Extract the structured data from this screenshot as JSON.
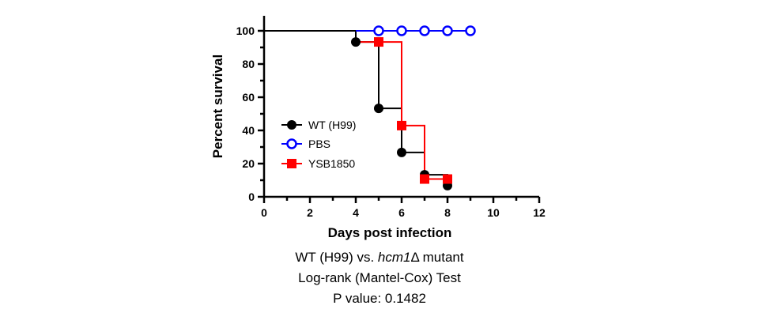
{
  "chart_data": {
    "type": "line",
    "subtype": "kaplan-meier-step",
    "xlabel": "Days post infection",
    "ylabel": "Percent survival",
    "xlim": [
      0,
      12
    ],
    "ylim": [
      0,
      100
    ],
    "x_ticks": [
      0,
      2,
      4,
      6,
      8,
      10,
      12
    ],
    "y_ticks": [
      0,
      20,
      40,
      60,
      80,
      100
    ],
    "legend_position": "left",
    "grid": false,
    "series": [
      {
        "name": "WT (H99)",
        "color": "#000000",
        "marker": "filled-circle",
        "step_x": [
          0,
          4,
          5,
          6,
          7,
          8
        ],
        "step_y": [
          100,
          93.3,
          53.3,
          26.7,
          13.3,
          6.7
        ],
        "points": [
          [
            4,
            93.3
          ],
          [
            5,
            53.3
          ],
          [
            6,
            26.7
          ],
          [
            7,
            13.3
          ],
          [
            8,
            6.7
          ]
        ]
      },
      {
        "name": "PBS",
        "color": "#0000ff",
        "marker": "open-circle",
        "step_x": [
          4,
          9
        ],
        "step_y": [
          100,
          100
        ],
        "points": [
          [
            5,
            100
          ],
          [
            6,
            100
          ],
          [
            7,
            100
          ],
          [
            8,
            100
          ],
          [
            9,
            100
          ]
        ]
      },
      {
        "name": "YSB1850",
        "color": "#ff0000",
        "marker": "filled-square",
        "step_x": [
          4,
          5,
          6,
          7,
          8
        ],
        "step_y": [
          93.3,
          93.3,
          42.9,
          10.7,
          10.7
        ],
        "points": [
          [
            5,
            93.3
          ],
          [
            6,
            42.9
          ],
          [
            7,
            10.7
          ],
          [
            8,
            10.7
          ]
        ]
      }
    ]
  },
  "caption": {
    "line1_prefix": "WT (H99) vs. ",
    "line1_gene": "hcm1",
    "line1_delta": "Δ",
    "line1_suffix": " mutant",
    "line2": "Log-rank (Mantel-Cox) Test",
    "line3": "P value: 0.1482"
  }
}
